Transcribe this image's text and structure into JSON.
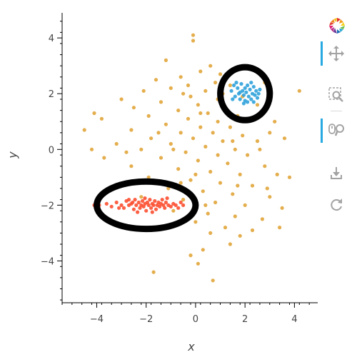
{
  "chart_data": {
    "type": "scatter",
    "xlabel": "x",
    "ylabel": "y",
    "xlim": [
      -5.4,
      5.0
    ],
    "ylim": [
      -5.5,
      4.9
    ],
    "xticks": [
      -4,
      -2,
      0,
      2,
      4
    ],
    "yticks": [
      -4,
      -2,
      0,
      2,
      4
    ],
    "grid": false,
    "series": [
      {
        "color": "#e1a53a",
        "points": [
          [
            -0.1,
            4.1
          ],
          [
            -0.1,
            3.9
          ],
          [
            -1.2,
            3.2
          ],
          [
            0.6,
            3.0
          ],
          [
            0.2,
            2.8
          ],
          [
            -0.6,
            2.6
          ],
          [
            1.0,
            2.7
          ],
          [
            -1.6,
            2.5
          ],
          [
            0.8,
            2.4
          ],
          [
            -0.3,
            2.3
          ],
          [
            2.8,
            2.4
          ],
          [
            4.2,
            2.1
          ],
          [
            -1.0,
            2.2
          ],
          [
            0.4,
            2.1
          ],
          [
            1.4,
            2.3
          ],
          [
            -2.1,
            2.1
          ],
          [
            -3.0,
            1.8
          ],
          [
            -0.2,
            1.9
          ],
          [
            0.9,
            1.8
          ],
          [
            1.9,
            1.9
          ],
          [
            -1.4,
            1.7
          ],
          [
            0.1,
            1.6
          ],
          [
            1.2,
            1.5
          ],
          [
            2.5,
            1.6
          ],
          [
            -2.5,
            1.5
          ],
          [
            -0.7,
            1.4
          ],
          [
            0.5,
            1.3
          ],
          [
            1.7,
            1.2
          ],
          [
            -4.1,
            1.3
          ],
          [
            -1.9,
            1.2
          ],
          [
            -0.3,
            1.1
          ],
          [
            0.9,
            1.0
          ],
          [
            2.2,
            1.1
          ],
          [
            3.2,
            1.0
          ],
          [
            -3.8,
            1.1
          ],
          [
            -1.2,
            0.9
          ],
          [
            0.2,
            0.8
          ],
          [
            1.4,
            0.8
          ],
          [
            -2.6,
            0.7
          ],
          [
            -0.6,
            0.6
          ],
          [
            0.7,
            0.6
          ],
          [
            1.9,
            0.5
          ],
          [
            3.0,
            0.6
          ],
          [
            -4.5,
            0.7
          ],
          [
            -1.8,
            0.4
          ],
          [
            -0.1,
            0.4
          ],
          [
            1.1,
            0.3
          ],
          [
            2.5,
            0.3
          ],
          [
            -3.2,
            0.2
          ],
          [
            -1.0,
            0.2
          ],
          [
            0.4,
            0.1
          ],
          [
            1.6,
            0.0
          ],
          [
            3.6,
            0.4
          ],
          [
            -2.2,
            0.0
          ],
          [
            -0.4,
            -0.1
          ],
          [
            0.9,
            -0.2
          ],
          [
            2.1,
            -0.2
          ],
          [
            -3.7,
            -0.3
          ],
          [
            -1.4,
            -0.3
          ],
          [
            0.1,
            -0.4
          ],
          [
            1.3,
            -0.5
          ],
          [
            2.8,
            -0.6
          ],
          [
            -2.6,
            -0.6
          ],
          [
            -0.7,
            -0.7
          ],
          [
            0.6,
            -0.8
          ],
          [
            1.8,
            -0.9
          ],
          [
            3.3,
            -0.9
          ],
          [
            -1.9,
            -1.0
          ],
          [
            -0.2,
            -1.1
          ],
          [
            1.0,
            -1.2
          ],
          [
            2.3,
            -1.3
          ],
          [
            -3.1,
            -1.3
          ],
          [
            -1.1,
            -1.4
          ],
          [
            0.3,
            -1.5
          ],
          [
            1.5,
            -1.6
          ],
          [
            3.0,
            -1.7
          ],
          [
            -2.2,
            -1.7
          ],
          [
            -0.5,
            -1.8
          ],
          [
            0.8,
            -1.9
          ],
          [
            2.0,
            -2.0
          ],
          [
            3.5,
            -2.1
          ],
          [
            -0.9,
            -2.2
          ],
          [
            0.5,
            -2.3
          ],
          [
            1.6,
            -2.4
          ],
          [
            2.7,
            -2.5
          ],
          [
            0.0,
            -2.6
          ],
          [
            1.2,
            -2.8
          ],
          [
            2.3,
            -2.9
          ],
          [
            3.4,
            -2.8
          ],
          [
            0.6,
            -3.0
          ],
          [
            1.8,
            -3.1
          ],
          [
            1.4,
            -3.4
          ],
          [
            0.3,
            -3.6
          ],
          [
            -0.2,
            -3.8
          ],
          [
            0.1,
            -4.1
          ],
          [
            0.7,
            -4.7
          ],
          [
            -1.7,
            -4.4
          ],
          [
            -0.6,
            -1.2
          ],
          [
            0.2,
            1.3
          ],
          [
            -0.9,
            0.0
          ],
          [
            1.7,
            -1.3
          ],
          [
            2.6,
            0.0
          ],
          [
            -1.5,
            0.6
          ],
          [
            0.0,
            -0.9
          ],
          [
            3.8,
            -1.0
          ],
          [
            -2.8,
            -0.1
          ],
          [
            1.1,
            2.0
          ],
          [
            -0.5,
            2.0
          ],
          [
            2.9,
            -1.4
          ],
          [
            -4.2,
            0.0
          ],
          [
            0.4,
            -2.0
          ],
          [
            1.5,
            0.3
          ]
        ]
      },
      {
        "color": "#fc4f30",
        "points": [
          [
            -4.1,
            -2.0
          ],
          [
            -3.9,
            -2.0
          ],
          [
            -3.6,
            -1.95
          ],
          [
            -3.4,
            -2.05
          ],
          [
            -3.2,
            -1.9
          ],
          [
            -3.0,
            -2.0
          ],
          [
            -2.9,
            -2.1
          ],
          [
            -2.8,
            -1.85
          ],
          [
            -2.7,
            -2.0
          ],
          [
            -2.6,
            -1.95
          ],
          [
            -2.5,
            -2.15
          ],
          [
            -2.45,
            -1.8
          ],
          [
            -2.4,
            -2.0
          ],
          [
            -2.3,
            -1.9
          ],
          [
            -2.25,
            -2.1
          ],
          [
            -2.2,
            -2.0
          ],
          [
            -2.15,
            -1.85
          ],
          [
            -2.1,
            -2.05
          ],
          [
            -2.05,
            -1.95
          ],
          [
            -2.0,
            -2.2
          ],
          [
            -1.95,
            -1.9
          ],
          [
            -1.9,
            -2.0
          ],
          [
            -1.85,
            -1.8
          ],
          [
            -1.8,
            -2.1
          ],
          [
            -1.75,
            -1.95
          ],
          [
            -1.7,
            -2.0
          ],
          [
            -1.65,
            -1.85
          ],
          [
            -1.6,
            -2.15
          ],
          [
            -1.55,
            -2.0
          ],
          [
            -1.5,
            -1.9
          ],
          [
            -1.45,
            -2.05
          ],
          [
            -1.4,
            -1.95
          ],
          [
            -1.35,
            -1.8
          ],
          [
            -1.3,
            -2.0
          ],
          [
            -1.25,
            -2.1
          ],
          [
            -1.2,
            -1.9
          ],
          [
            -1.1,
            -2.0
          ],
          [
            -1.0,
            -2.05
          ],
          [
            -0.9,
            -1.95
          ],
          [
            -0.8,
            -2.0
          ],
          [
            -0.7,
            -2.1
          ],
          [
            -0.6,
            -1.9
          ],
          [
            -2.35,
            -2.25
          ],
          [
            -2.05,
            -1.75
          ],
          [
            -1.75,
            -2.25
          ],
          [
            -2.55,
            -1.9
          ],
          [
            -1.15,
            -1.75
          ],
          [
            -0.5,
            -2.0
          ],
          [
            -3.1,
            -2.1
          ],
          [
            -2.7,
            -1.8
          ]
        ]
      },
      {
        "color": "#30a2da",
        "points": [
          [
            1.45,
            2.1
          ],
          [
            1.55,
            2.3
          ],
          [
            1.6,
            1.9
          ],
          [
            1.7,
            2.2
          ],
          [
            1.75,
            2.0
          ],
          [
            1.8,
            1.8
          ],
          [
            1.85,
            2.35
          ],
          [
            1.9,
            2.1
          ],
          [
            1.95,
            1.95
          ],
          [
            2.0,
            2.2
          ],
          [
            2.0,
            1.75
          ],
          [
            2.05,
            2.05
          ],
          [
            2.1,
            2.3
          ],
          [
            2.15,
            1.9
          ],
          [
            2.2,
            2.15
          ],
          [
            2.25,
            1.8
          ],
          [
            2.3,
            2.0
          ],
          [
            2.35,
            2.25
          ],
          [
            2.4,
            1.95
          ],
          [
            2.45,
            2.1
          ],
          [
            2.5,
            1.85
          ],
          [
            2.55,
            2.0
          ],
          [
            1.65,
            2.4
          ],
          [
            2.25,
            2.4
          ],
          [
            1.95,
            1.65
          ],
          [
            2.1,
            1.7
          ],
          [
            2.6,
            2.15
          ],
          [
            1.5,
            1.8
          ],
          [
            1.8,
            2.05
          ],
          [
            2.35,
            1.7
          ]
        ]
      }
    ],
    "annotations": [
      {
        "shape": "ellipse",
        "center": [
          -2.0,
          -2.0
        ],
        "radii": [
          2.0,
          0.85
        ]
      },
      {
        "shape": "ellipse",
        "center": [
          2.0,
          2.0
        ],
        "radii": [
          1.0,
          0.95
        ]
      }
    ]
  },
  "toolbar": {
    "tools": [
      {
        "name": "bokeh-logo-icon",
        "active": false
      },
      {
        "name": "pan-icon",
        "active": true
      },
      {
        "name": "box-zoom-icon",
        "active": false
      },
      {
        "name": "wheel-zoom-icon",
        "active": true
      },
      {
        "name": "save-icon",
        "active": false
      },
      {
        "name": "reset-icon",
        "active": false
      }
    ]
  }
}
